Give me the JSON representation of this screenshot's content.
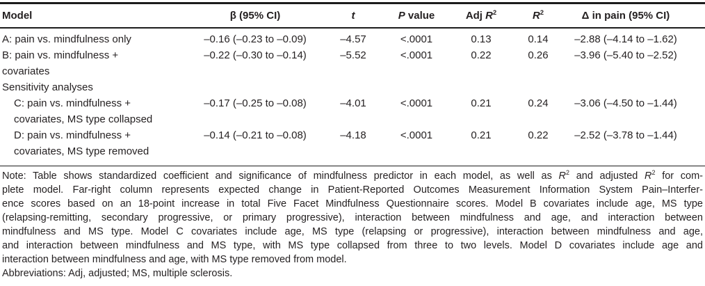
{
  "table": {
    "header": {
      "model": "Model",
      "beta": "β (95% CI)",
      "t": "*t*",
      "p": "*P* value",
      "adj_r2": "Adj *R*^2^",
      "r2": "*R*^2^",
      "delta": "Δ in pain (95% CI)"
    },
    "rows": [
      {
        "type": "data",
        "indent": false,
        "model": "A: pain vs. mindfulness only",
        "beta": "–0.16 (–0.23 to –0.09)",
        "t": "–4.57",
        "p": "<.0001",
        "adj_r2": "0.13",
        "r2": "0.14",
        "delta": "–2.88 (–4.14 to –1.62)"
      },
      {
        "type": "data",
        "indent": false,
        "model": "B: pain vs. mindfulness +\ncovariates",
        "beta": "–0.22 (–0.30 to –0.14)",
        "t": "–5.52",
        "p": "<.0001",
        "adj_r2": "0.22",
        "r2": "0.26",
        "delta": "–3.96 (–5.40 to –2.52)"
      },
      {
        "type": "section",
        "model": "Sensitivity analyses"
      },
      {
        "type": "data",
        "indent": true,
        "model": "C: pain vs. mindfulness +\ncovariates, MS type collapsed",
        "beta": "–0.17 (–0.25 to –0.08)",
        "t": "–4.01",
        "p": "<.0001",
        "adj_r2": "0.21",
        "r2": "0.24",
        "delta": "–3.06 (–4.50 to –1.44)"
      },
      {
        "type": "data",
        "indent": true,
        "model": "D: pain vs. mindfulness +\ncovariates, MS type removed",
        "beta": "–0.14 (–0.21 to –0.08)",
        "t": "–4.18",
        "p": "<.0001",
        "adj_r2": "0.21",
        "r2": "0.22",
        "delta": "–2.52 (–3.78 to –1.44)"
      }
    ]
  },
  "note": {
    "paragraph_lines": [
      "Note: Table shows standardized coefficient and significance of mindfulness predictor in each model, as well as *R*^2^ and adjusted *R*^2^ for com-",
      "plete model. Far-right column represents expected change in Patient-Reported Outcomes Measurement Information System Pain–Interfer-",
      "ence scores based on an 18-point increase in total Five Facet Mindfulness Questionnaire scores. Model B covariates include age, MS type",
      "(relapsing-remitting, secondary progressive, or primary progressive), interaction between mindfulness and age, and interaction between",
      "mindfulness and MS type. Model C covariates include age, MS type (relapsing or progressive), interaction between mindfulness and age,",
      "and interaction between mindfulness and MS type, with MS type collapsed from three to two levels. Model D covariates include age and",
      "interaction between mindfulness and age, with MS type removed from model."
    ],
    "abbreviations": "Abbreviations: Adj, adjusted; MS, multiple sclerosis."
  },
  "colors": {
    "text": "#231f20",
    "rule": "#1c1c1c",
    "background": "#ffffff"
  }
}
